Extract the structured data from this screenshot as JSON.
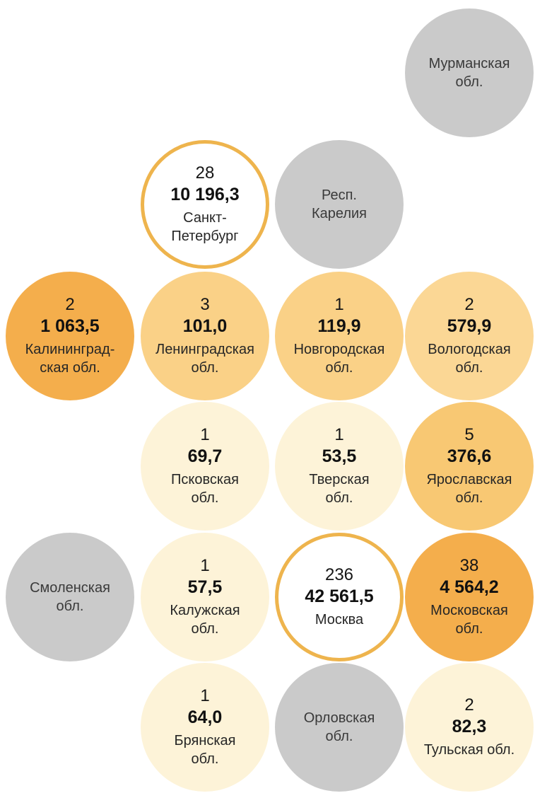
{
  "colors": {
    "no_data_gray": "#cacaca",
    "scale_lightest": "#fdf3d8",
    "scale_light": "#fad187",
    "scale_medium": "#f8c873",
    "scale_dark": "#f4ae4c",
    "ring_accent": "#eeb44d",
    "text": "#1a1a1a"
  },
  "chart_data": {
    "type": "bubble-grid-cartogram",
    "description_visible": "",
    "legend": "none",
    "ring_color": "#eeb44d",
    "regions": [
      {
        "name": "Мурманская\nобл.",
        "count": "",
        "value": "",
        "color": "#cacaca",
        "has_data": false,
        "grid_col": 4,
        "grid_row": 1
      },
      {
        "name": "Санкт-\nПетербург",
        "count": "28",
        "value": "10 196,3",
        "color": "#ffffff",
        "has_data": true,
        "highlight_ring": true,
        "grid_col": 2,
        "grid_row": 2
      },
      {
        "name": "Респ.\nКарелия",
        "count": "",
        "value": "",
        "color": "#cacaca",
        "has_data": false,
        "grid_col": 3,
        "grid_row": 2
      },
      {
        "name": "Калининград-\nская обл.",
        "count": "2",
        "value": "1 063,5",
        "color": "#f4ae4c",
        "has_data": true,
        "grid_col": 1,
        "grid_row": 3
      },
      {
        "name": "Ленинградская\nобл.",
        "count": "3",
        "value": "101,0",
        "color": "#fad187",
        "has_data": true,
        "grid_col": 2,
        "grid_row": 3
      },
      {
        "name": "Новгородская\nобл.",
        "count": "1",
        "value": "119,9",
        "color": "#fad187",
        "has_data": true,
        "grid_col": 3,
        "grid_row": 3
      },
      {
        "name": "Вологодская\nобл.",
        "count": "2",
        "value": "579,9",
        "color": "#fbd795",
        "has_data": true,
        "grid_col": 4,
        "grid_row": 3
      },
      {
        "name": "Псковская\nобл.",
        "count": "1",
        "value": "69,7",
        "color": "#fdf3d8",
        "has_data": true,
        "grid_col": 2,
        "grid_row": 4
      },
      {
        "name": "Тверская\nобл.",
        "count": "1",
        "value": "53,5",
        "color": "#fdf3d8",
        "has_data": true,
        "grid_col": 3,
        "grid_row": 4
      },
      {
        "name": "Ярославская\nобл.",
        "count": "5",
        "value": "376,6",
        "color": "#f8c873",
        "has_data": true,
        "grid_col": 4,
        "grid_row": 4
      },
      {
        "name": "Смоленская\nобл.",
        "count": "",
        "value": "",
        "color": "#cacaca",
        "has_data": false,
        "grid_col": 1,
        "grid_row": 5
      },
      {
        "name": "Калужская\nобл.",
        "count": "1",
        "value": "57,5",
        "color": "#fdf3d8",
        "has_data": true,
        "grid_col": 2,
        "grid_row": 5
      },
      {
        "name": "Москва",
        "count": "236",
        "value": "42 561,5",
        "color": "#ffffff",
        "has_data": true,
        "highlight_ring": true,
        "grid_col": 3,
        "grid_row": 5
      },
      {
        "name": "Московская\nобл.",
        "count": "38",
        "value": "4 564,2",
        "color": "#f4ae4c",
        "has_data": true,
        "grid_col": 4,
        "grid_row": 5
      },
      {
        "name": "Брянская\nобл.",
        "count": "1",
        "value": "64,0",
        "color": "#fdf3d8",
        "has_data": true,
        "grid_col": 2,
        "grid_row": 6
      },
      {
        "name": "Орловская\nобл.",
        "count": "",
        "value": "",
        "color": "#cacaca",
        "has_data": false,
        "grid_col": 3,
        "grid_row": 6
      },
      {
        "name": "Тульская обл.",
        "count": "2",
        "value": "82,3",
        "color": "#fdf3d8",
        "has_data": true,
        "grid_col": 4,
        "grid_row": 6
      }
    ]
  }
}
